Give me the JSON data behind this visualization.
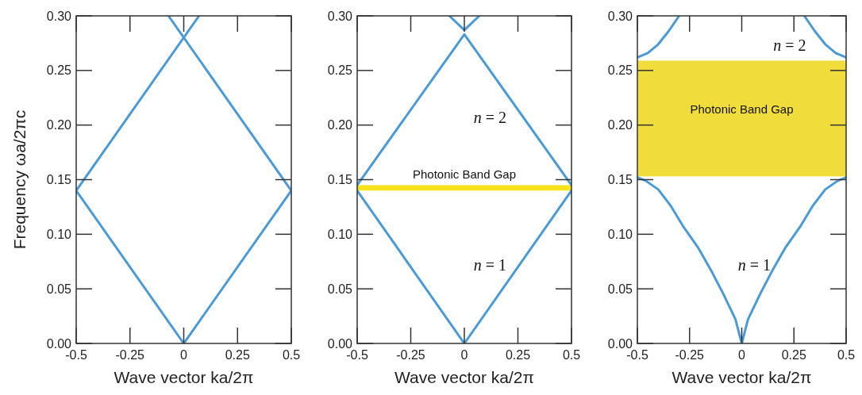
{
  "chart_data": [
    {
      "type": "line",
      "xlabel": "Wave vector  ka/2π",
      "ylabel": "Frequency  ωa/2πc",
      "xlim": [
        -0.5,
        0.5
      ],
      "ylim": [
        0,
        0.3
      ],
      "xticks": [
        -0.5,
        -0.25,
        0,
        0.25,
        0.5
      ],
      "yticks": [
        {
          "value": 0,
          "label": "0.00"
        },
        {
          "value": 0.05,
          "label": "0.05"
        },
        {
          "value": 0.1,
          "label": "0.10"
        },
        {
          "value": 0.15,
          "label": "0.15"
        },
        {
          "value": 0.2,
          "label": "0.20"
        },
        {
          "value": 0.25,
          "label": "0.25"
        },
        {
          "value": 0.3,
          "label": "0.30"
        }
      ],
      "series": [
        {
          "color": "#4a9ad6",
          "x": [
            -0.5,
            0,
            0.5
          ],
          "values": [
            0.14,
            0,
            0.14
          ]
        },
        {
          "color": "#4a9ad6",
          "x": [
            -0.5,
            0.071
          ],
          "values": [
            0.14,
            0.3
          ]
        },
        {
          "color": "#4a9ad6",
          "x": [
            -0.071,
            0.5
          ],
          "values": [
            0.3,
            0.14
          ]
        }
      ]
    },
    {
      "type": "line",
      "xlabel": "Wave vector  ka/2π",
      "xlim": [
        -0.5,
        0.5
      ],
      "ylim": [
        0,
        0.3
      ],
      "xticks": [
        -0.5,
        -0.25,
        0,
        0.25,
        0.5
      ],
      "yticks": [
        {
          "value": 0,
          "label": "0.00"
        },
        {
          "value": 0.05,
          "label": "0.05"
        },
        {
          "value": 0.1,
          "label": "0.10"
        },
        {
          "value": 0.15,
          "label": "0.15"
        },
        {
          "value": 0.2,
          "label": "0.20"
        },
        {
          "value": 0.25,
          "label": "0.25"
        },
        {
          "value": 0.3,
          "label": "0.30"
        }
      ],
      "series": [
        {
          "name": "n = 1",
          "color": "#4a9ad6",
          "x": [
            -0.5,
            0,
            0.5
          ],
          "values": [
            0.14,
            0,
            0.14
          ]
        },
        {
          "name": "n = 2",
          "color": "#4a9ad6",
          "x": [
            -0.5,
            0,
            0.5
          ],
          "values": [
            0.145,
            0.283,
            0.145
          ]
        },
        {
          "color": "#4a9ad6",
          "x": [
            -0.07,
            0,
            0.07
          ],
          "values": [
            0.3,
            0.287,
            0.3
          ]
        }
      ],
      "bands": [
        {
          "axis": "y",
          "from": 0.14,
          "to": 0.145,
          "color": "#f5e21a",
          "label": "Photonic Band Gap"
        }
      ]
    },
    {
      "type": "line",
      "xlabel": "Wave vector  ka/2π",
      "xlim": [
        -0.5,
        0.5
      ],
      "ylim": [
        0,
        0.3
      ],
      "xticks": [
        -0.5,
        -0.25,
        0,
        0.25,
        0.5
      ],
      "yticks": [
        {
          "value": 0,
          "label": "0.00"
        },
        {
          "value": 0.05,
          "label": "0.05"
        },
        {
          "value": 0.1,
          "label": "0.10"
        },
        {
          "value": 0.15,
          "label": "0.15"
        },
        {
          "value": 0.2,
          "label": "0.20"
        },
        {
          "value": 0.25,
          "label": "0.25"
        },
        {
          "value": 0.3,
          "label": "0.30"
        }
      ],
      "series": [
        {
          "name": "n = 1",
          "color": "#4a9ad6",
          "x": [
            -0.5,
            -0.46,
            -0.4,
            -0.34,
            -0.28,
            -0.21,
            -0.15,
            -0.09,
            -0.03,
            0,
            0.03,
            0.09,
            0.15,
            0.21,
            0.28,
            0.34,
            0.4,
            0.46,
            0.5
          ],
          "values": [
            0.152,
            0.149,
            0.141,
            0.126,
            0.107,
            0.088,
            0.068,
            0.046,
            0.022,
            0,
            0.022,
            0.046,
            0.068,
            0.088,
            0.107,
            0.126,
            0.141,
            0.149,
            0.152
          ]
        },
        {
          "name": "n = 2",
          "color": "#4a9ad6",
          "x": [
            -0.5,
            -0.45,
            -0.4,
            -0.35,
            -0.3,
            0,
            0.3,
            0.35,
            0.4,
            0.45,
            0.5
          ],
          "values": [
            0.262,
            0.266,
            0.274,
            0.286,
            0.3,
            null,
            0.3,
            0.286,
            0.274,
            0.266,
            0.262
          ]
        }
      ],
      "bands": [
        {
          "axis": "y",
          "from": 0.153,
          "to": 0.259,
          "color": "#f0dc3a",
          "label": "Photonic Band Gap"
        }
      ]
    }
  ]
}
